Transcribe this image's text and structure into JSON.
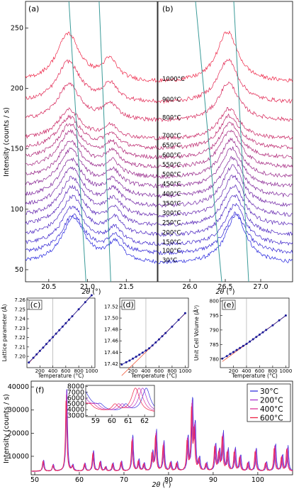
{
  "colors": {
    "cold": "#2222dd",
    "hot": "#ee2244",
    "guide": "#3a9a98",
    "fit": "#ee4422",
    "marker": "#1a1a99"
  },
  "chart_data": [
    {
      "id": "a",
      "type": "line",
      "panel_label": "(a)",
      "xlabel_symbol": "2θ",
      "xlabel_unit": "(°)",
      "ylabel": "Intensity (counts / s)",
      "xlim": [
        20.2,
        21.9
      ],
      "ylim": [
        40,
        272
      ],
      "xticks": [
        "20.5",
        "21.0",
        "21.5"
      ],
      "yticks": [
        "50",
        "100",
        "150",
        "200",
        "250"
      ],
      "peaks": [
        20.82,
        21.36
      ],
      "temperature_labels": [
        "30°C",
        "100°C",
        "150°C",
        "200°C",
        "250°C",
        "300°C",
        "350°C",
        "400°C",
        "450°C",
        "500°C",
        "550°C",
        "600°C",
        "650°C",
        "700°C",
        "800°C",
        "900°C",
        "1000°C"
      ],
      "series_baselines": [
        55,
        63,
        70,
        78,
        86,
        94,
        102,
        110,
        118,
        126,
        134,
        142,
        150,
        158,
        173,
        188,
        205
      ],
      "series_peak_heights": [
        38,
        32,
        32,
        32,
        32,
        32,
        32,
        31,
        31,
        30,
        30,
        28,
        26,
        24,
        30,
        34,
        40
      ]
    },
    {
      "id": "b",
      "type": "line",
      "panel_label": "(b)",
      "xlabel_symbol": "2θ",
      "xlabel_unit": "(°)",
      "xlim": [
        25.55,
        27.45
      ],
      "xticks": [
        "26.0",
        "26.5",
        "27.0"
      ],
      "peaks": [
        26.65
      ]
    },
    {
      "id": "c",
      "type": "scatter",
      "panel_label": "(c)",
      "ylabel": "Lattice parameter (Å)",
      "xlabel": "Temperature (°C)",
      "xlim": [
        0,
        1050
      ],
      "ylim": [
        7.188,
        7.262
      ],
      "xticks": [
        "200",
        "400",
        "600",
        "800",
        "1000"
      ],
      "yticks": [
        "7.20",
        "7.21",
        "7.22",
        "7.23",
        "7.24",
        "7.25",
        "7.26"
      ],
      "x": [
        30,
        100,
        150,
        200,
        250,
        300,
        350,
        400,
        450,
        500,
        550,
        600,
        650,
        700,
        800,
        900,
        1000
      ],
      "y": [
        7.1935,
        7.1985,
        7.2021,
        7.2058,
        7.2094,
        7.2131,
        7.2168,
        7.2205,
        7.2242,
        7.2279,
        7.2316,
        7.2353,
        7.239,
        7.2427,
        7.2501,
        7.2576,
        7.265
      ]
    },
    {
      "id": "d",
      "type": "scatter",
      "panel_label": "(d)",
      "xlabel": "Temperature (°C)",
      "xlim": [
        0,
        1050
      ],
      "ylim": [
        17.413,
        17.535
      ],
      "xticks": [
        "200",
        "400",
        "600",
        "800",
        "1000"
      ],
      "yticks": [
        "17.42",
        "17.44",
        "17.46",
        "17.48",
        "17.50",
        "17.52"
      ],
      "x": [
        30,
        100,
        150,
        200,
        250,
        300,
        350,
        400,
        450,
        500,
        550,
        600,
        650,
        700,
        800,
        900,
        1000
      ],
      "y": [
        17.4185,
        17.4225,
        17.4255,
        17.4288,
        17.4322,
        17.4357,
        17.4393,
        17.443,
        17.447,
        17.452,
        17.4572,
        17.4625,
        17.468,
        17.4736,
        17.485,
        17.4967,
        17.5085
      ]
    },
    {
      "id": "e",
      "type": "scatter",
      "panel_label": "(e)",
      "ylabel": "Unit Cell Volume (Å³)",
      "xlabel": "Temperature (°C)",
      "xlim": [
        0,
        1050
      ],
      "ylim": [
        777,
        801
      ],
      "xticks": [
        "200",
        "400",
        "600",
        "800",
        "1000"
      ],
      "yticks": [
        "780",
        "785",
        "790",
        "795",
        "800"
      ],
      "x": [
        30,
        100,
        150,
        200,
        250,
        300,
        350,
        400,
        450,
        500,
        550,
        600,
        650,
        700,
        800,
        900,
        1000
      ],
      "y": [
        780.1,
        781.0,
        781.7,
        782.4,
        783.1,
        783.8,
        784.5,
        785.2,
        786.0,
        786.8,
        787.6,
        788.4,
        789.2,
        790.0,
        791.6,
        793.3,
        795.0
      ]
    },
    {
      "id": "f",
      "type": "line",
      "panel_label": "(f)",
      "xlabel_symbol": "2θ",
      "xlabel_unit": "(°)",
      "ylabel": "Intensity (counts / s)",
      "xlim": [
        49.2,
        107.8
      ],
      "ylim": [
        2000,
        42500
      ],
      "xticks": [
        "50",
        "60",
        "70",
        "80",
        "90",
        "100"
      ],
      "yticks": [
        "10000",
        "20000",
        "30000",
        "40000"
      ],
      "legend_position": "top-right",
      "series": [
        {
          "name": "30°C",
          "color": "#3333dd"
        },
        {
          "name": "200°C",
          "color": "#aa33cc"
        },
        {
          "name": "400°C",
          "color": "#dd3399"
        },
        {
          "name": "600°C",
          "color": "#ee2244"
        }
      ],
      "inset": {
        "xlim": [
          58.4,
          62.6
        ],
        "ylim": [
          2800,
          8200
        ],
        "xticks": [
          "59",
          "60",
          "61",
          "62"
        ],
        "yticks": [
          "3000",
          "4000",
          "5000",
          "6000",
          "7000",
          "8000"
        ]
      }
    }
  ]
}
